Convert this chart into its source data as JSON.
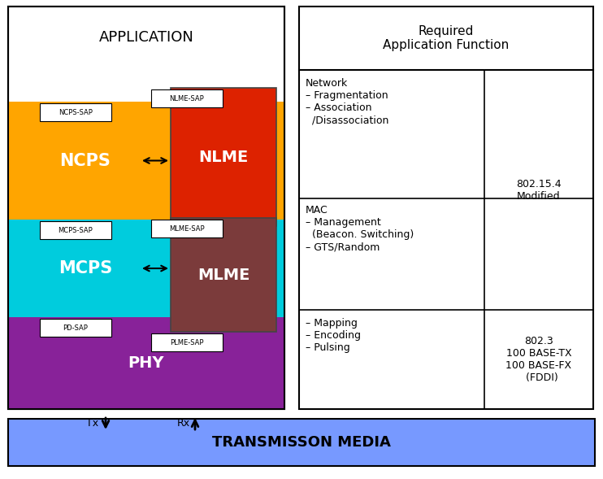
{
  "title": "TRANSMISSON MEDIA",
  "table_title": "Required\nApplication Function",
  "left_panel_title": "APPLICATION",
  "ncps_color": "#FFA500",
  "mcps_color": "#00CCDD",
  "phy_color": "#882299",
  "nlme_color": "#DD2200",
  "mlme_color": "#7B3B3B",
  "transmission_color": "#7799FF",
  "white": "#FFFFFF",
  "black": "#000000"
}
